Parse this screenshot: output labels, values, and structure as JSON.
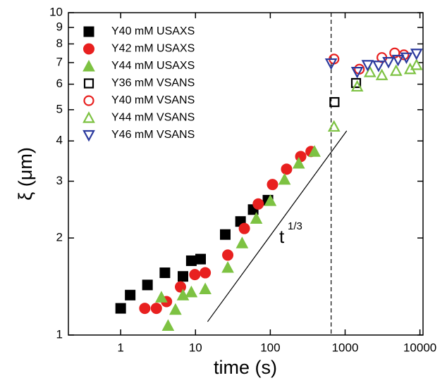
{
  "chart_data": {
    "type": "scatter",
    "x_label": "time (s)",
    "y_label": "ξ (μm)",
    "log_x": true,
    "log_y": true,
    "xlim": [
      0.2,
      11000
    ],
    "ylim": [
      1,
      10
    ],
    "xticks": [
      1,
      10,
      100,
      1000,
      10000
    ],
    "yticks": [
      1,
      2,
      3,
      4,
      5,
      6,
      7,
      8,
      9,
      10
    ],
    "legend": "upper left",
    "vline": 650,
    "reference_line": {
      "x": [
        14.5,
        1050
      ],
      "y": [
        1.1,
        4.3
      ]
    },
    "annotation": "t",
    "annotation_superscript": "1/3",
    "series": [
      {
        "name": "Y40 mM USAXS",
        "color": "#000000",
        "marker": "square",
        "filled": true,
        "x": [
          1,
          1.34,
          2.28,
          3.9,
          6.8,
          8.8,
          11.7,
          25,
          40,
          59,
          93
        ],
        "values": [
          1.21,
          1.33,
          1.43,
          1.56,
          1.52,
          1.7,
          1.72,
          2.05,
          2.25,
          2.45,
          2.62
        ]
      },
      {
        "name": "Y42 mM USAXS",
        "color": "#e8201f",
        "marker": "circle",
        "filled": true,
        "x": [
          2.1,
          3.0,
          4.1,
          6.3,
          9.8,
          13.5,
          27,
          45,
          69,
          107,
          165,
          255,
          350
        ],
        "values": [
          1.21,
          1.21,
          1.27,
          1.41,
          1.54,
          1.56,
          1.77,
          2.14,
          2.55,
          2.93,
          3.27,
          3.58,
          3.71
        ]
      },
      {
        "name": "Y44 mM USAXS",
        "color": "#7dc242",
        "marker": "triangle-up",
        "filled": true,
        "x": [
          3.5,
          4.3,
          5.4,
          6.8,
          8.8,
          13.5,
          27,
          42,
          65,
          100,
          155,
          240,
          390
        ],
        "values": [
          1.31,
          1.07,
          1.2,
          1.33,
          1.36,
          1.39,
          1.62,
          1.93,
          2.3,
          2.61,
          3.04,
          3.41,
          3.71
        ]
      },
      {
        "name": "Y36 mM VSANS",
        "color": "#000000",
        "marker": "square",
        "filled": false,
        "x": [
          720,
          1400
        ],
        "values": [
          5.28,
          6.05
        ]
      },
      {
        "name": "Y40 mM VSANS",
        "color": "#e8201f",
        "marker": "circle",
        "filled": false,
        "x": [
          710,
          1550,
          3100,
          4600,
          6100
        ],
        "values": [
          7.18,
          6.68,
          7.26,
          7.5,
          7.4
        ]
      },
      {
        "name": "Y44 mM VSANS",
        "color": "#7dc242",
        "marker": "triangle-up",
        "filled": false,
        "x": [
          710,
          1450,
          2150,
          3100,
          4800,
          7400,
          9000
        ],
        "values": [
          4.43,
          5.9,
          6.54,
          6.4,
          6.6,
          6.68,
          6.88
        ]
      },
      {
        "name": "Y46 mM VSANS",
        "color": "#2b3a9e",
        "marker": "triangle-down",
        "filled": false,
        "x": [
          650,
          1450,
          2000,
          2800,
          3800,
          5100,
          6600,
          9000
        ],
        "values": [
          6.96,
          6.55,
          6.88,
          6.85,
          7.03,
          7.14,
          7.26,
          7.46
        ]
      }
    ]
  }
}
